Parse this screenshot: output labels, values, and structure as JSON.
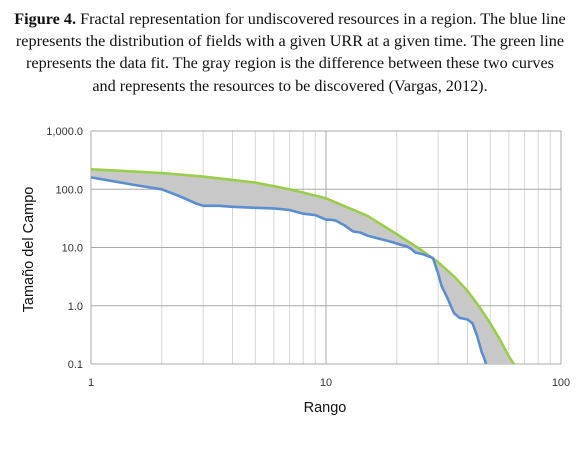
{
  "caption": {
    "label": "Figure 4.",
    "text": " Fractal representation for undiscovered resources in a region. The blue line represents the distribution of fields with a given URR at a given time. The green line represents the data fit. The gray region is the difference between these two curves and represents the resources to be discovered (Vargas, 2012)."
  },
  "chart_data": {
    "type": "line",
    "title": "",
    "xlabel": "Rango",
    "ylabel": "Tamaño del Campo",
    "xscale": "log",
    "yscale": "log",
    "xlim": [
      1,
      100
    ],
    "ylim": [
      0.1,
      1000
    ],
    "x_ticks": [
      "1",
      "10",
      "100"
    ],
    "y_ticks": [
      "0.1",
      "1.0",
      "10.0",
      "100.0",
      "1,000.0"
    ],
    "grid": true,
    "colors": {
      "observed": "#5b8ed0",
      "fit": "#9acd4a",
      "gap": "#c8c8c8"
    },
    "series": [
      {
        "name": "",
        "color": "#5b8ed0",
        "x": [
          1,
          1.5,
          2,
          2.4,
          2.8,
          3.0,
          3.5,
          4.0,
          5.0,
          6.0,
          7.0,
          8.0,
          9.0,
          10.0,
          10.5,
          11.0,
          12.0,
          13.0,
          14.0,
          15.0,
          17.0,
          19.0,
          21.0,
          22.0,
          23.0,
          24.0,
          26.0,
          28.5,
          30.0,
          31.0,
          33.0,
          35.0,
          37.0,
          40.0,
          42.0,
          44.0,
          46.0,
          47.0,
          48.0
        ],
        "y": [
          160,
          120,
          100,
          75,
          57,
          52,
          52,
          50,
          48,
          47,
          44,
          38,
          36,
          30,
          30,
          29,
          24,
          19,
          18,
          16,
          14,
          12.5,
          11,
          10.5,
          9.5,
          8.2,
          7.6,
          6.6,
          3.6,
          2.2,
          1.3,
          0.75,
          0.62,
          0.58,
          0.5,
          0.3,
          0.16,
          0.13,
          0.1
        ]
      },
      {
        "name": "",
        "color": "#9acd4a",
        "x": [
          1,
          2,
          3,
          5,
          7,
          10,
          15,
          20,
          25,
          30,
          35,
          40,
          45,
          50,
          55,
          60,
          63
        ],
        "y": [
          220,
          190,
          165,
          130,
          100,
          70,
          35,
          17,
          9.5,
          5.6,
          3.2,
          1.8,
          0.95,
          0.5,
          0.26,
          0.135,
          0.1
        ]
      }
    ]
  }
}
